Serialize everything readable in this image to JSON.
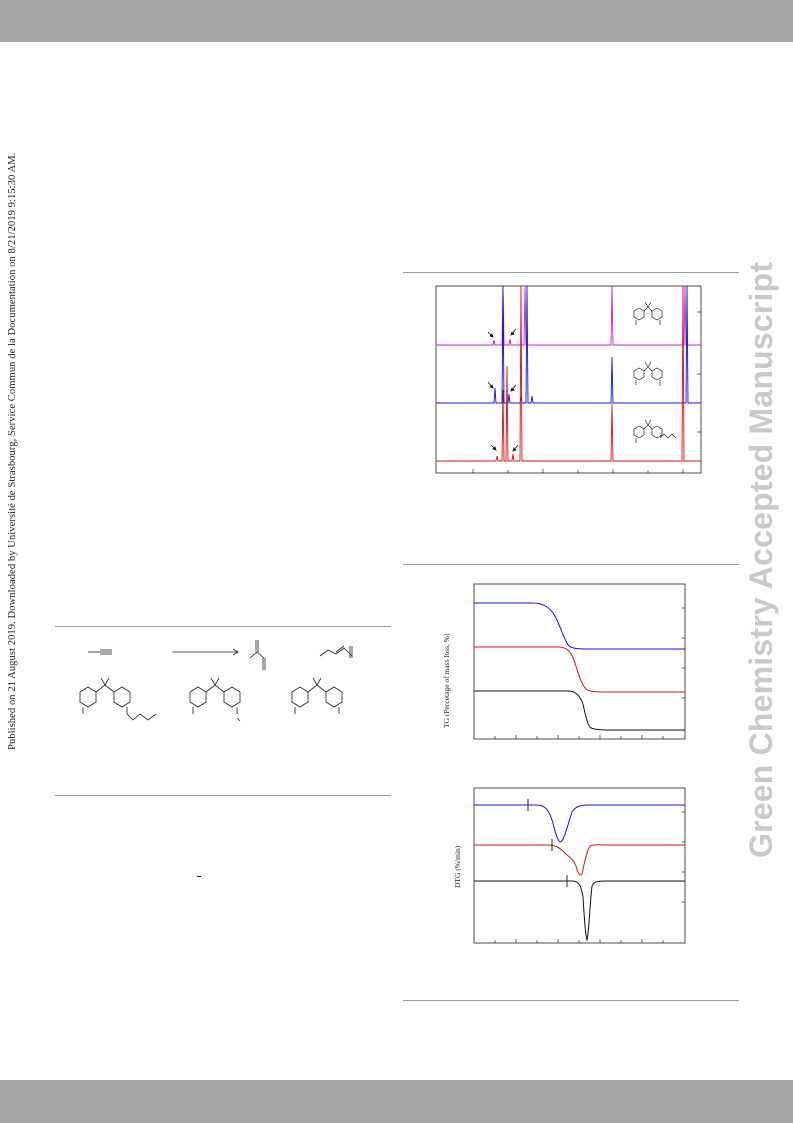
{
  "sidebar_note": "Published on 21 August 2019. Downloaded by Université de Strasbourg, Service Commun de la Documentation on 8/21/2019 9:15:30 AM.",
  "watermark": "Green Chemistry Accepted Manuscript",
  "colors": {
    "band": "#a7a7a7",
    "blue": "#1010ee",
    "red": "#e01010",
    "black": "#111111",
    "magenta": "#d020d0",
    "watermark": "#c9c9c9"
  },
  "figures": {
    "nmr": {
      "traces": [
        "magenta",
        "blue",
        "red"
      ]
    },
    "tg": {
      "ylabel": "TG (Percetage of mass loss, %)",
      "traces": [
        "blue",
        "red",
        "black"
      ]
    },
    "dtg": {
      "ylabel": "DTG (%/min)",
      "traces": [
        "blue",
        "red",
        "black"
      ]
    }
  }
}
